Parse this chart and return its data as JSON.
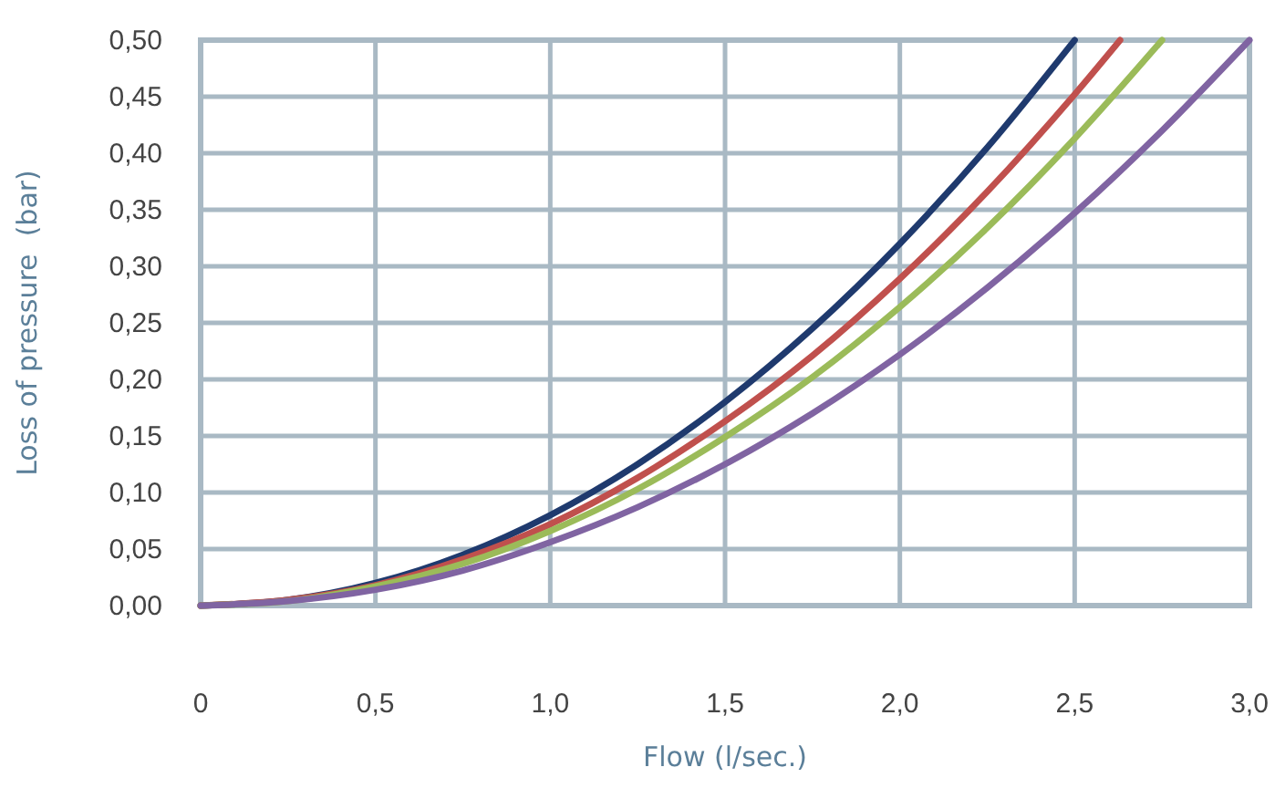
{
  "chart_data": {
    "type": "line",
    "xlabel": "Flow (l/sec.)",
    "ylabel": "Loss of pressure  (bar)",
    "xlim": [
      0,
      3
    ],
    "ylim": [
      0,
      0.5
    ],
    "xticks": [
      0,
      {
        "value": 0.5,
        "label": "0,5"
      },
      {
        "value": 1,
        "label": "1,0"
      },
      {
        "value": 1.5,
        "label": "1,5"
      },
      {
        "value": 2,
        "label": "2,0"
      },
      {
        "value": 2.5,
        "label": "2,5"
      },
      {
        "value": 3,
        "label": "3,0"
      }
    ],
    "yticks": [
      {
        "value": 0,
        "label": "0,00"
      },
      {
        "value": 0.05,
        "label": "0,05"
      },
      {
        "value": 0.1,
        "label": "0,10"
      },
      {
        "value": 0.15,
        "label": "0,15"
      },
      {
        "value": 0.2,
        "label": "0,20"
      },
      {
        "value": 0.25,
        "label": "0,25"
      },
      {
        "value": 0.3,
        "label": "0,30"
      },
      {
        "value": 0.35,
        "label": "0,35"
      },
      {
        "value": 0.4,
        "label": "0,40"
      },
      {
        "value": 0.45,
        "label": "0,45"
      },
      {
        "value": 0.5,
        "label": "0,50"
      }
    ],
    "grid": true,
    "marker": "none",
    "line_style": "solid",
    "series": [
      {
        "color": "#1f3a6e",
        "x": [
          0,
          0.25,
          0.5,
          0.75,
          1,
          1.25,
          1.5,
          1.75,
          2,
          2.25,
          2.5
        ],
        "values": [
          0,
          0.005,
          0.02,
          0.045,
          0.08,
          0.125,
          0.18,
          0.245,
          0.32,
          0.405,
          0.5
        ]
      },
      {
        "color": "#c0504d",
        "x": [
          0,
          0.25,
          0.5,
          0.75,
          1,
          1.25,
          1.5,
          1.75,
          2,
          2.25,
          2.5,
          2.63
        ],
        "values": [
          0,
          0.005,
          0.018,
          0.041,
          0.072,
          0.113,
          0.163,
          0.221,
          0.289,
          0.366,
          0.452,
          0.5
        ]
      },
      {
        "color": "#9bbb59",
        "x": [
          0,
          0.25,
          0.5,
          0.75,
          1,
          1.25,
          1.5,
          1.75,
          2,
          2.25,
          2.5,
          2.75
        ],
        "values": [
          0,
          0.004,
          0.017,
          0.037,
          0.066,
          0.103,
          0.149,
          0.202,
          0.264,
          0.334,
          0.413,
          0.5
        ]
      },
      {
        "color": "#8064a2",
        "x": [
          0,
          0.25,
          0.5,
          0.75,
          1,
          1.25,
          1.5,
          1.75,
          2,
          2.25,
          2.5,
          2.75,
          3
        ],
        "values": [
          0,
          0.004,
          0.014,
          0.031,
          0.056,
          0.087,
          0.125,
          0.17,
          0.222,
          0.281,
          0.347,
          0.42,
          0.5
        ]
      }
    ]
  }
}
